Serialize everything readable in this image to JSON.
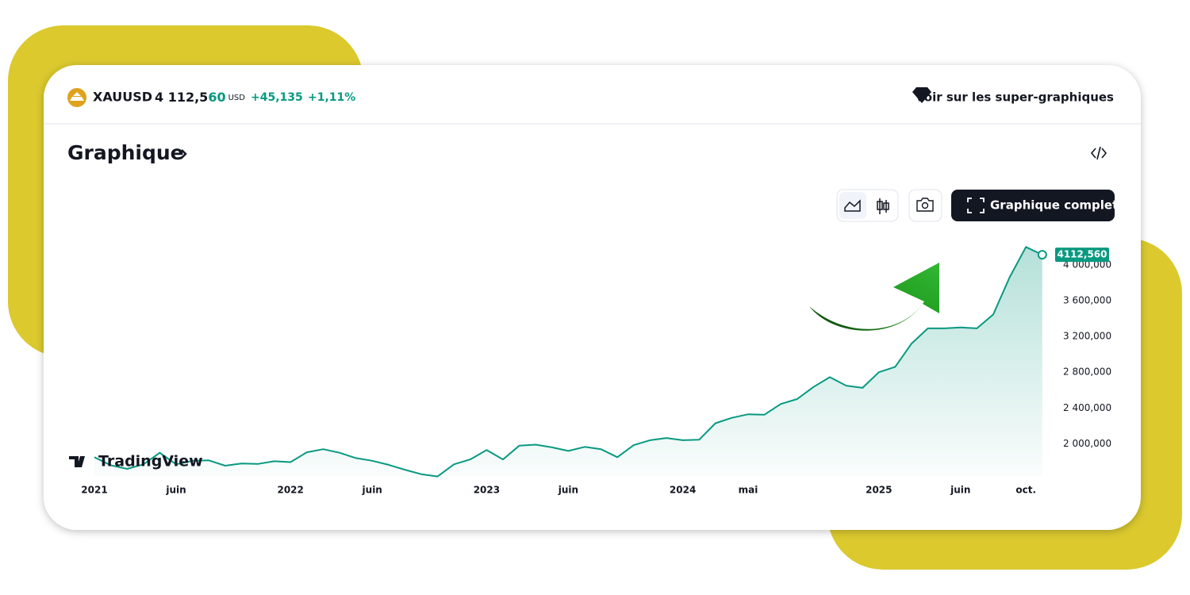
{
  "header": {
    "symbol": "XAUUSD",
    "price_main": "4 112,5",
    "price_last_digits": "60",
    "currency": "USD",
    "change": "+45,135",
    "change_percent": "+1,11%",
    "super_charts_link": "Voir sur les super-graphiques"
  },
  "section_title": "Graphique",
  "toolbar": {
    "full_chart_button": "Graphique complet"
  },
  "chart_data": {
    "type": "line",
    "brand": "TradingView",
    "color": "#089981",
    "area_fill": true,
    "categories": [
      "2021",
      null,
      null,
      null,
      null,
      "juin",
      null,
      null,
      null,
      null,
      null,
      null,
      "2022",
      null,
      null,
      null,
      null,
      "juin",
      null,
      null,
      null,
      null,
      null,
      null,
      "2023",
      null,
      null,
      null,
      null,
      "juin",
      null,
      null,
      null,
      null,
      null,
      null,
      "2024",
      null,
      null,
      null,
      "mai",
      null,
      null,
      null,
      null,
      null,
      null,
      null,
      "2025",
      null,
      null,
      null,
      null,
      "juin",
      null,
      null,
      null,
      "oct.",
      null
    ],
    "values": [
      1850,
      1760,
      1720,
      1770,
      1900,
      1770,
      1810,
      1815,
      1755,
      1780,
      1775,
      1805,
      1795,
      1905,
      1940,
      1900,
      1840,
      1810,
      1765,
      1710,
      1660,
      1635,
      1770,
      1825,
      1930,
      1825,
      1980,
      1990,
      1960,
      1920,
      1965,
      1940,
      1850,
      1985,
      2040,
      2065,
      2040,
      2045,
      2230,
      2290,
      2330,
      2325,
      2445,
      2500,
      2635,
      2745,
      2650,
      2625,
      2800,
      2860,
      3120,
      3290,
      3290,
      3300,
      3290,
      3445,
      3860,
      4200,
      4112.56
    ],
    "ylim": [
      1640,
      4300
    ],
    "yticks": [
      {
        "value": 2000,
        "label": "2 000,000"
      },
      {
        "value": 2400,
        "label": "2 400,000"
      },
      {
        "value": 2800,
        "label": "2 800,000"
      },
      {
        "value": 3200,
        "label": "3 200,000"
      },
      {
        "value": 3600,
        "label": "3 600,000"
      },
      {
        "value": 4000,
        "label": "4 000,000"
      }
    ],
    "last_value": {
      "value": 4112.56,
      "label": "4112,560"
    }
  }
}
